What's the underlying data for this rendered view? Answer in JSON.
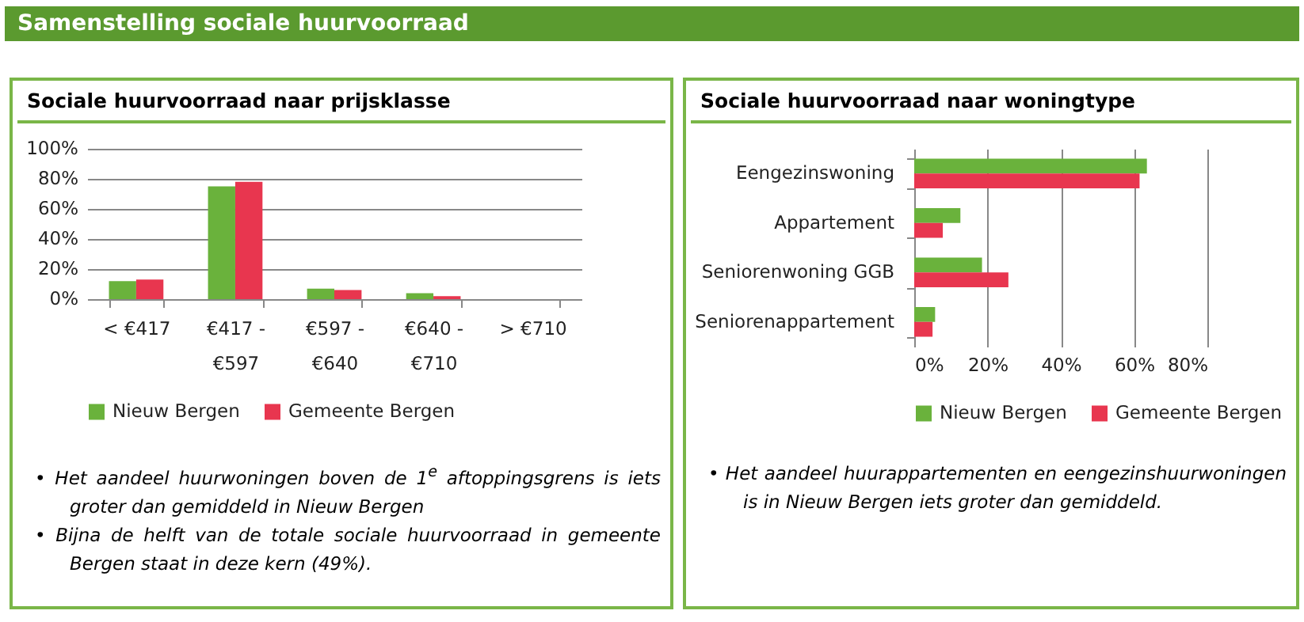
{
  "chart_data": [
    {
      "type": "other",
      "title": "Samenstelling sociale huurvoorraad"
    },
    {
      "type": "bar",
      "title": "Sociale huurvoorraad naar prijsklasse",
      "categories": [
        "< €417",
        "€417 - €597",
        "€597 - €640",
        "€640 - €710",
        "> €710"
      ],
      "series": [
        {
          "name": "Nieuw Bergen",
          "color": "#6ab23c",
          "values": [
            12,
            75,
            7,
            4,
            0
          ]
        },
        {
          "name": "Gemeente Bergen",
          "color": "#e8364f",
          "values": [
            13,
            78,
            6,
            2,
            0
          ]
        }
      ],
      "ylim": [
        0,
        100
      ],
      "yticks": [
        {
          "value": 0,
          "label": "0%"
        },
        {
          "value": 20,
          "label": "20%"
        },
        {
          "value": 40,
          "label": "40%"
        },
        {
          "value": 60,
          "label": "60%"
        },
        {
          "value": 80,
          "label": "80%"
        },
        {
          "value": 100,
          "label": "100%"
        }
      ],
      "grid": "y",
      "legend": "bottom",
      "annotations": [
        "• Het aandeel huurwoningen boven de 1$^{e}$ aftoppingsgrens is iets groter dan gemiddeld in Nieuw Bergen",
        "• Bijna de helft van de totale sociale huurvoorraad in gemeente Bergen staat in deze kern (49%)."
      ]
    },
    {
      "type": "bar",
      "orientation": "horizontal",
      "title": "Sociale huurvoorraad naar woningtype",
      "categories": [
        "Eengezinswoning",
        "Appartement",
        "Seniorenwoning GGB",
        "Seniorenappartement"
      ],
      "series": [
        {
          "name": "Nieuw Bergen",
          "color": "#6ab23c",
          "values": [
            63.5,
            12.6,
            18.5,
            5.7
          ]
        },
        {
          "name": "Gemeente Bergen",
          "color": "#e8364f",
          "values": [
            61.5,
            7.8,
            25.7,
            5
          ]
        }
      ],
      "xlim": [
        0,
        80
      ],
      "xticks": [
        {
          "value": 0,
          "label": "0%"
        },
        {
          "value": 20,
          "label": "20%"
        },
        {
          "value": 40,
          "label": "40%"
        },
        {
          "value": 60,
          "label": "60%"
        },
        {
          "value": 80,
          "label": "80%"
        }
      ],
      "grid": "x",
      "legend": "bottom",
      "annotations": [
        "• Het aandeel huurappartementen en eengezinshuurwoningen is in Nieuw Bergen iets groter dan gemiddeld."
      ]
    }
  ]
}
